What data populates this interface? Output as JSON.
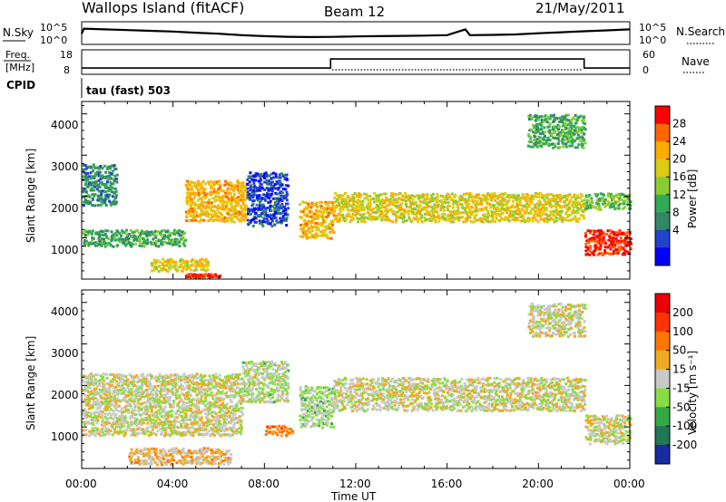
{
  "header": {
    "title": "Wallops Island (fitACF)",
    "beam": "Beam 12",
    "date": "21/May/2011"
  },
  "sky_panel": {
    "left_label": "N.Sky",
    "left_ticks": [
      "10^5",
      "10^0"
    ],
    "right_label": "N.Search",
    "right_ticks": [
      "10^5",
      "10^0"
    ]
  },
  "freq_panel": {
    "left_label_1": "Freq.",
    "left_label_2": "[MHz]",
    "left_ticks": [
      "18",
      "8"
    ],
    "right_label": "Nave",
    "right_ticks": [
      "60",
      "0"
    ]
  },
  "cpid_panel": {
    "label": "CPID",
    "value": "tau (fast) 503"
  },
  "x_axis": {
    "label": "Time UT",
    "ticks": [
      "00:00",
      "04:00",
      "08:00",
      "12:00",
      "16:00",
      "20:00",
      "00:00"
    ]
  },
  "power_panel": {
    "ylabel": "Slant Range [km]",
    "yticks": [
      "4000",
      "3000",
      "2000",
      "1000"
    ],
    "colorbar_label": "Power [dB]",
    "colorbar_ticks": [
      "28",
      "24",
      "20",
      "16",
      "12",
      "8",
      "4"
    ],
    "colors": [
      "#0000ff",
      "#2244cc",
      "#338866",
      "#33aa55",
      "#88cc33",
      "#ddcc11",
      "#ffaa00",
      "#ff6600",
      "#ff0000"
    ]
  },
  "velocity_panel": {
    "ylabel": "Slant Range [km]",
    "yticks": [
      "4000",
      "3000",
      "2000",
      "1000"
    ],
    "colorbar_label": "Velocity [m s⁻¹]",
    "colorbar_ticks": [
      "200",
      "100",
      "50",
      "15",
      "-15",
      "-50",
      "-100",
      "-200"
    ],
    "colors": [
      "#1a2aa0",
      "#227755",
      "#33aa44",
      "#88dd44",
      "#c8c8c8",
      "#eeaa22",
      "#ff7700",
      "#ff3300",
      "#ee0000"
    ]
  },
  "chart_data": [
    {
      "type": "line",
      "title": "N.Sky / N.Search",
      "x_unit": "hours UT",
      "x": [
        0,
        0.1,
        1,
        2,
        3,
        4,
        5,
        6,
        7,
        8,
        9,
        10,
        11,
        12,
        13,
        14,
        15,
        16,
        16.8,
        17,
        18,
        19,
        20,
        21,
        22,
        23,
        24
      ],
      "series": [
        {
          "name": "N.Sky",
          "values": [
            0.55,
            0.9,
            0.85,
            0.8,
            0.75,
            0.7,
            0.62,
            0.55,
            0.45,
            0.38,
            0.34,
            0.32,
            0.33,
            0.36,
            0.38,
            0.4,
            0.42,
            0.45,
            0.85,
            0.45,
            0.47,
            0.5,
            0.58,
            0.65,
            0.72,
            0.78,
            0.85
          ]
        }
      ],
      "ylim": [
        0,
        1
      ]
    },
    {
      "type": "line",
      "title": "Frequency / Nave",
      "x": [
        0,
        10.9,
        10.9,
        22,
        22,
        24
      ],
      "series": [
        {
          "name": "Freq",
          "values": [
            10.7,
            10.7,
            16.3,
            16.3,
            10.7,
            10.7
          ]
        }
      ],
      "ylim": [
        8,
        18
      ]
    },
    {
      "type": "heatmap",
      "title": "Power [dB]",
      "xlim": [
        0,
        24
      ],
      "ylim": [
        180,
        4500
      ],
      "x_unit": "hours UT",
      "y_unit": "km",
      "features": [
        {
          "x0": 0,
          "x1": 4.5,
          "y0": 1000,
          "y1": 1400,
          "value": 14
        },
        {
          "x0": 4.5,
          "x1": 7.2,
          "y0": 1600,
          "y1": 2600,
          "value": 22
        },
        {
          "x0": 7.2,
          "x1": 9,
          "y0": 1500,
          "y1": 2800,
          "value": 8
        },
        {
          "x0": 0,
          "x1": 1.5,
          "y0": 2000,
          "y1": 3000,
          "value": 12
        },
        {
          "x0": 3,
          "x1": 5.5,
          "y0": 400,
          "y1": 700,
          "value": 20
        },
        {
          "x0": 4.5,
          "x1": 6,
          "y0": 250,
          "y1": 330,
          "value": 28
        },
        {
          "x0": 9.5,
          "x1": 11,
          "y0": 1200,
          "y1": 2100,
          "value": 22
        },
        {
          "x0": 11,
          "x1": 22,
          "y0": 1600,
          "y1": 2300,
          "value": 20
        },
        {
          "x0": 19.5,
          "x1": 22,
          "y0": 3400,
          "y1": 4200,
          "value": 14
        },
        {
          "x0": 22,
          "x1": 24,
          "y0": 800,
          "y1": 1400,
          "value": 28
        },
        {
          "x0": 22,
          "x1": 24,
          "y0": 1900,
          "y1": 2300,
          "value": 16
        }
      ]
    },
    {
      "type": "heatmap",
      "title": "Velocity [m s⁻¹]",
      "xlim": [
        0,
        24
      ],
      "ylim": [
        180,
        4500
      ],
      "x_unit": "hours UT",
      "y_unit": "km",
      "features": [
        {
          "x0": 0,
          "x1": 7,
          "y0": 1000,
          "y1": 2500,
          "value": 0
        },
        {
          "x0": 7,
          "x1": 9,
          "y0": 1800,
          "y1": 2800,
          "value": 20
        },
        {
          "x0": 9.5,
          "x1": 11,
          "y0": 1200,
          "y1": 2200,
          "value": 30
        },
        {
          "x0": 11,
          "x1": 22,
          "y0": 1600,
          "y1": 2400,
          "value": 0
        },
        {
          "x0": 22,
          "x1": 24,
          "y0": 800,
          "y1": 1500,
          "value": 0
        },
        {
          "x0": 2,
          "x1": 6.5,
          "y0": 300,
          "y1": 700,
          "value": -40
        },
        {
          "x0": 8,
          "x1": 9.2,
          "y0": 1000,
          "y1": 1250,
          "value": -90
        },
        {
          "x0": 19.5,
          "x1": 22,
          "y0": 3400,
          "y1": 4200,
          "value": 0
        }
      ]
    }
  ]
}
